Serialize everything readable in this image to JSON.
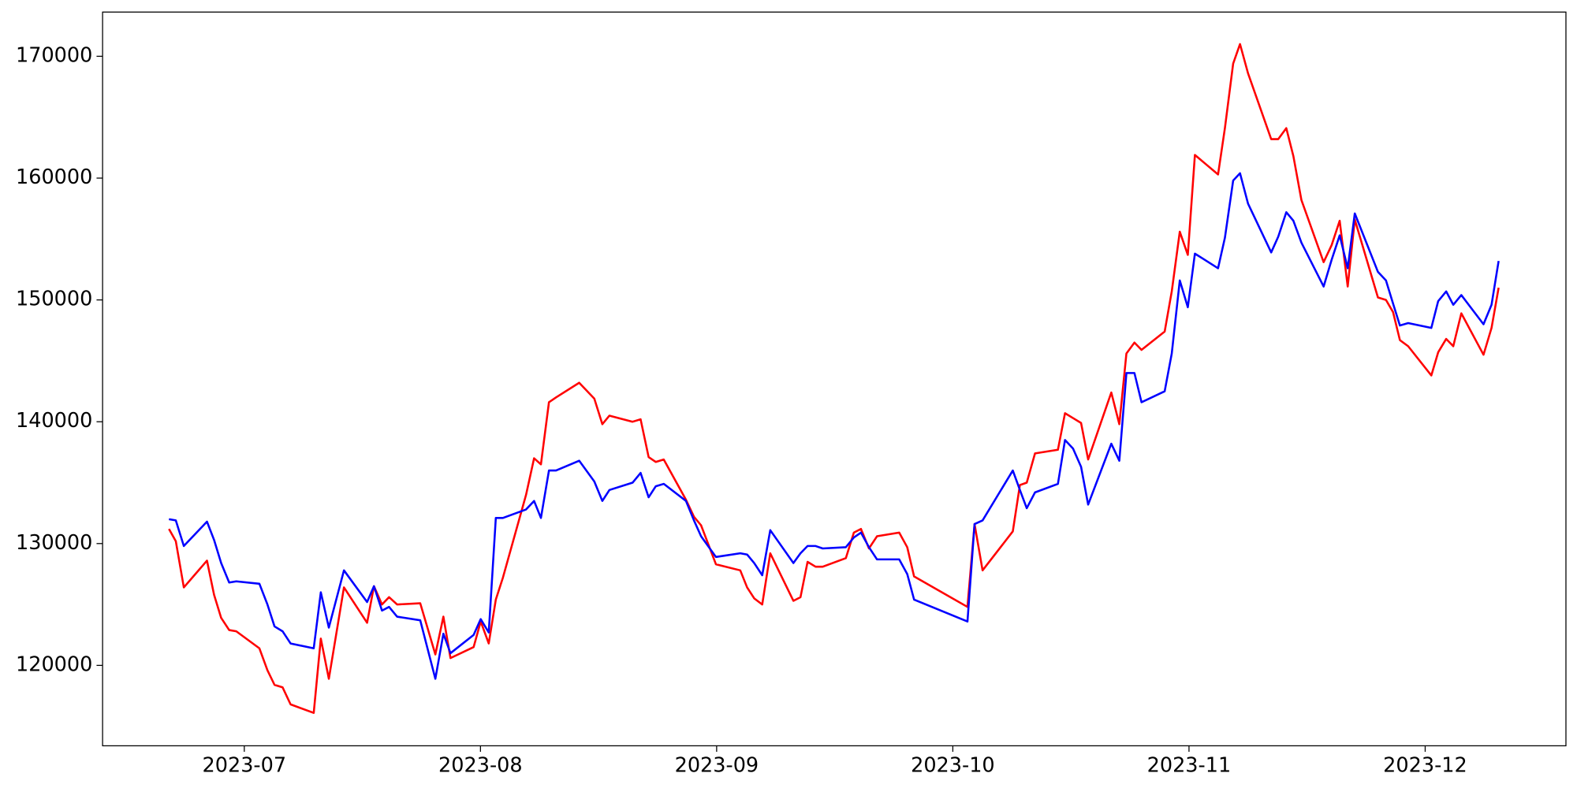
{
  "chart_data": {
    "type": "line",
    "x": [
      -0.319,
      -0.29,
      -0.256,
      -0.158,
      -0.128,
      -0.098,
      -0.064,
      -0.034,
      0.064,
      0.098,
      0.128,
      0.162,
      0.196,
      0.294,
      0.324,
      0.358,
      0.422,
      0.52,
      0.549,
      0.583,
      0.613,
      0.647,
      0.745,
      0.809,
      0.843,
      0.873,
      0.971,
      1.001,
      1.035,
      1.065,
      1.095,
      1.193,
      1.227,
      1.256,
      1.29,
      1.32,
      1.418,
      1.482,
      1.516,
      1.546,
      1.644,
      1.678,
      1.712,
      1.742,
      1.776,
      1.87,
      1.904,
      1.934,
      1.997,
      2.1,
      2.129,
      2.159,
      2.193,
      2.227,
      2.325,
      2.355,
      2.385,
      2.419,
      2.449,
      2.547,
      2.581,
      2.611,
      2.645,
      2.679,
      2.773,
      2.807,
      2.836,
      3.062,
      3.092,
      3.126,
      3.254,
      3.284,
      3.313,
      3.348,
      3.445,
      3.475,
      3.509,
      3.543,
      3.573,
      3.671,
      3.705,
      3.735,
      3.769,
      3.799,
      3.897,
      3.927,
      3.961,
      3.995,
      4.025,
      4.123,
      4.152,
      4.187,
      4.216,
      4.25,
      4.348,
      4.378,
      4.412,
      4.442,
      4.476,
      4.57,
      4.604,
      4.638,
      4.672,
      4.702,
      4.8,
      4.834,
      4.864,
      4.893,
      4.928,
      5.026,
      5.055,
      5.089,
      5.119,
      5.153,
      5.247,
      5.281,
      5.311
    ],
    "series": [
      {
        "color": "#ff0000",
        "values": [
          131200,
          130200,
          126400,
          128600,
          125800,
          123900,
          122900,
          122800,
          121400,
          119600,
          118400,
          118200,
          116800,
          116100,
          122200,
          118900,
          126400,
          123500,
          126500,
          125000,
          125600,
          125000,
          125100,
          120900,
          124000,
          120600,
          121500,
          123600,
          121800,
          125400,
          127200,
          134000,
          137000,
          136500,
          141600,
          142000,
          143200,
          141900,
          139800,
          140500,
          140000,
          140200,
          137100,
          136700,
          136900,
          133600,
          132200,
          131500,
          128300,
          127800,
          126400,
          125500,
          125000,
          129200,
          125300,
          125600,
          128500,
          128100,
          128100,
          128800,
          130900,
          131200,
          129600,
          130600,
          130900,
          129700,
          127300,
          124800,
          131600,
          127800,
          131000,
          134800,
          135000,
          137400,
          137700,
          140700,
          140300,
          139900,
          136900,
          142400,
          139800,
          145600,
          146500,
          145900,
          147400,
          150700,
          155600,
          153700,
          161900,
          160300,
          164100,
          169400,
          171000,
          168600,
          163200,
          163200,
          164100,
          161800,
          158200,
          153100,
          154500,
          156500,
          151100,
          156600,
          150200,
          150000,
          149000,
          146700,
          146200,
          143800,
          145700,
          146800,
          146200,
          148900,
          145500,
          147700,
          151000
        ]
      },
      {
        "color": "#0000ff",
        "values": [
          132000,
          131900,
          129800,
          131800,
          130300,
          128400,
          126800,
          126900,
          126700,
          125000,
          123200,
          122800,
          121800,
          121400,
          126000,
          123100,
          127800,
          125200,
          126500,
          124500,
          124800,
          124000,
          123700,
          118900,
          122600,
          121000,
          122500,
          123800,
          122700,
          132100,
          132100,
          132800,
          133500,
          132100,
          136000,
          136000,
          136800,
          135100,
          133500,
          134400,
          135000,
          135800,
          133800,
          134700,
          134900,
          133500,
          131900,
          130600,
          128900,
          129200,
          129100,
          128400,
          127400,
          131100,
          128400,
          129200,
          129800,
          129800,
          129600,
          129700,
          130500,
          130900,
          129700,
          128700,
          128700,
          127500,
          125400,
          123600,
          131600,
          131900,
          136000,
          134400,
          132900,
          134200,
          134900,
          138500,
          137800,
          136300,
          133200,
          138200,
          136800,
          144000,
          144000,
          141600,
          142500,
          145600,
          151600,
          149400,
          153800,
          152600,
          155100,
          159800,
          160400,
          157900,
          153900,
          155200,
          157200,
          156500,
          154700,
          151100,
          153300,
          155300,
          152600,
          157100,
          152300,
          151600,
          149700,
          147900,
          148100,
          147700,
          149900,
          150700,
          149600,
          150400,
          148000,
          149600,
          153200
        ]
      }
    ],
    "xlim": [
      -0.6,
      5.596
    ],
    "xticks": [
      {
        "value": 0,
        "label": "2023-07"
      },
      {
        "value": 1,
        "label": "2023-08"
      },
      {
        "value": 2,
        "label": "2023-09"
      },
      {
        "value": 3,
        "label": "2023-10"
      },
      {
        "value": 4,
        "label": "2023-11"
      },
      {
        "value": 5,
        "label": "2023-12"
      }
    ],
    "ylim": [
      113400,
      173630
    ],
    "yticks": [
      120000,
      130000,
      140000,
      150000,
      160000,
      170000
    ],
    "grid": false
  }
}
